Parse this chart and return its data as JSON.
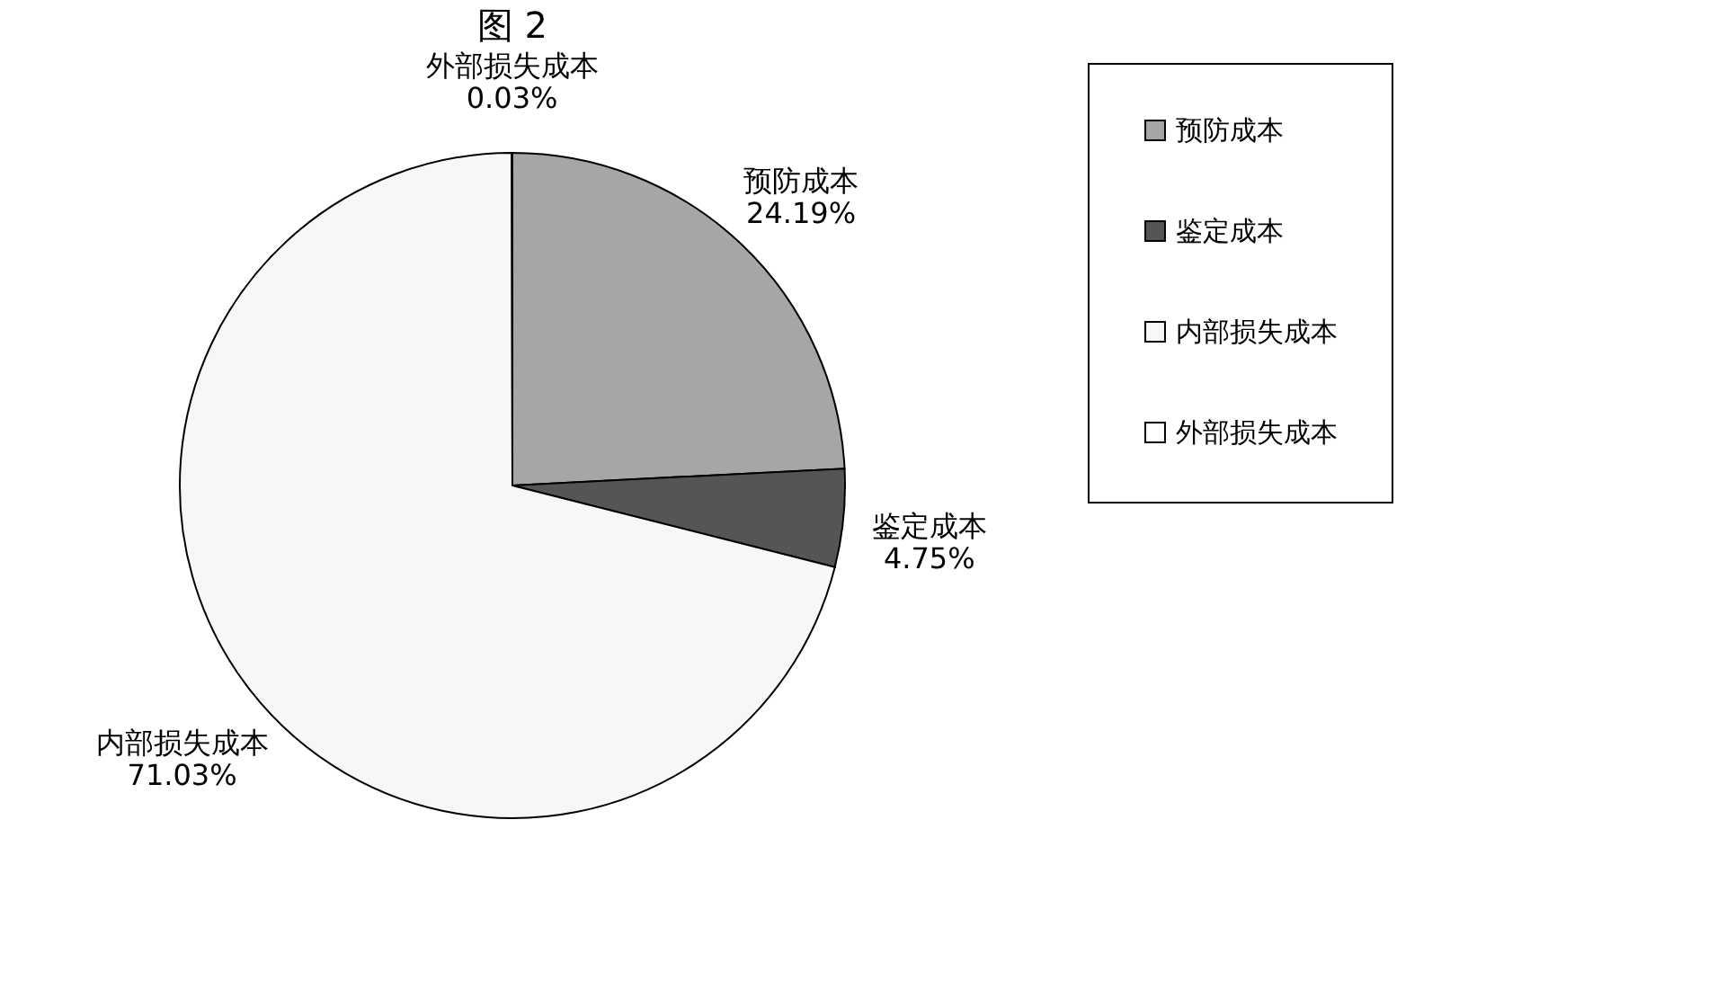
{
  "chart_data": {
    "type": "pie",
    "title": "图 2",
    "categories": [
      "预防成本",
      "鉴定成本",
      "内部损失成本",
      "外部损失成本"
    ],
    "values": [
      24.19,
      4.75,
      71.03,
      0.03
    ],
    "colors": [
      "#a6a6a6",
      "#555555",
      "#f7f7f7",
      "#ffffff"
    ],
    "value_labels": [
      "24.19%",
      "4.75%",
      "71.03%",
      "0.03%"
    ],
    "legend": "right"
  }
}
